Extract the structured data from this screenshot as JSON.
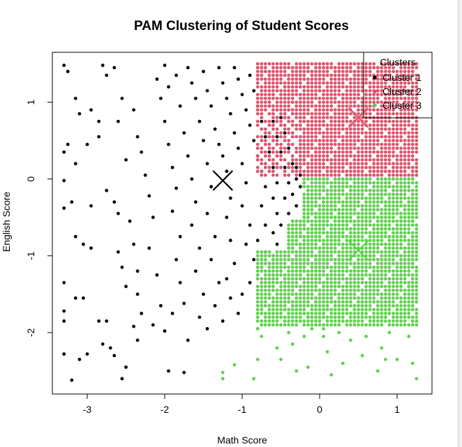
{
  "chart_data": {
    "type": "scatter",
    "title": "PAM Clustering of Student Scores",
    "xlabel": "Math Score",
    "ylabel": "English Score",
    "xlim": [
      -3.45,
      1.45
    ],
    "ylim": [
      -2.8,
      1.65
    ],
    "xticks": [
      -3,
      -2,
      -1,
      0,
      1
    ],
    "yticks": [
      -2,
      -1,
      0,
      1
    ],
    "grid": false,
    "legend": {
      "title": "Clusters",
      "placement": "top-right",
      "entries": [
        "Cluster 1",
        "Cluster 2",
        "Cluster 3"
      ]
    },
    "medoids": [
      {
        "cluster": "Cluster 1",
        "x": -1.25,
        "y": -0.02,
        "color": "#000000"
      },
      {
        "cluster": "Cluster 2",
        "x": 0.5,
        "y": 0.8,
        "color": "#DF536B"
      },
      {
        "cluster": "Cluster 3",
        "x": 0.5,
        "y": -0.93,
        "color": "#61D04F"
      }
    ],
    "series": [
      {
        "name": "Cluster 1",
        "color": "#000000",
        "points": [
          [
            -3.3,
            1.48
          ],
          [
            -3.25,
            1.4
          ],
          [
            -3.15,
            1.05
          ],
          [
            -3.1,
            0.85
          ],
          [
            -3.25,
            0.45
          ],
          [
            -3.3,
            0.35
          ],
          [
            -3.15,
            0.2
          ],
          [
            -3.3,
            -0.02
          ],
          [
            -3.2,
            -0.3
          ],
          [
            -3.3,
            -0.38
          ],
          [
            -3.15,
            -0.75
          ],
          [
            -3.05,
            -0.85
          ],
          [
            -3.3,
            -1.35
          ],
          [
            -3.15,
            -1.55
          ],
          [
            -3.3,
            -1.72
          ],
          [
            -3.3,
            -1.85
          ],
          [
            -3.3,
            -2.28
          ],
          [
            -3.2,
            -2.62
          ],
          [
            -3.1,
            -2.35
          ],
          [
            -3.0,
            0.45
          ],
          [
            -2.95,
            -0.35
          ],
          [
            -2.85,
            0.55
          ],
          [
            -2.95,
            -0.9
          ],
          [
            -3.05,
            -1.55
          ],
          [
            -2.85,
            -1.85
          ],
          [
            -2.75,
            -1.85
          ],
          [
            -2.8,
            -2.15
          ],
          [
            -3.0,
            -2.28
          ],
          [
            -2.8,
            1.48
          ],
          [
            -2.75,
            1.35
          ],
          [
            -2.95,
            0.9
          ],
          [
            -2.85,
            0.75
          ],
          [
            -2.75,
            -0.15
          ],
          [
            -2.65,
            -0.3
          ],
          [
            -2.6,
            -0.45
          ],
          [
            -2.6,
            -0.95
          ],
          [
            -2.55,
            -1.15
          ],
          [
            -2.5,
            -1.4
          ],
          [
            -2.7,
            -2.2
          ],
          [
            -2.65,
            -2.3
          ],
          [
            -2.5,
            -2.45
          ],
          [
            -2.55,
            -2.6
          ],
          [
            -2.65,
            1.45
          ],
          [
            -2.6,
            0.75
          ],
          [
            -2.55,
            1.05
          ],
          [
            -2.5,
            0.25
          ],
          [
            -2.45,
            -0.55
          ],
          [
            -2.4,
            -0.85
          ],
          [
            -2.35,
            -1.2
          ],
          [
            -2.35,
            -1.5
          ],
          [
            -2.3,
            -1.75
          ],
          [
            -2.4,
            -1.92
          ],
          [
            -2.35,
            -2.1
          ],
          [
            -2.4,
            0.9
          ],
          [
            -2.35,
            0.55
          ],
          [
            -2.3,
            0.35
          ],
          [
            -2.25,
            0.05
          ],
          [
            -2.2,
            -0.22
          ],
          [
            -2.15,
            -0.5
          ],
          [
            -2.2,
            -0.9
          ],
          [
            -2.1,
            -1.25
          ],
          [
            -2.05,
            -1.65
          ],
          [
            -2.0,
            -1.98
          ],
          [
            -2.15,
            -1.9
          ],
          [
            -2.1,
            1.3
          ],
          [
            -2.05,
            1.05
          ],
          [
            -2.0,
            0.75
          ],
          [
            -1.95,
            0.45
          ],
          [
            -1.9,
            0.15
          ],
          [
            -1.85,
            -0.12
          ],
          [
            -1.9,
            -0.42
          ],
          [
            -1.8,
            -0.75
          ],
          [
            -1.85,
            -1.05
          ],
          [
            -1.8,
            -1.35
          ],
          [
            -1.75,
            -1.62
          ],
          [
            -1.9,
            -1.75
          ],
          [
            -1.7,
            -2.1
          ],
          [
            -1.95,
            -2.5
          ],
          [
            -1.75,
            -2.52
          ],
          [
            -2.0,
            1.48
          ],
          [
            -1.95,
            1.2
          ],
          [
            -1.85,
            1.35
          ],
          [
            -1.8,
            0.95
          ],
          [
            -1.75,
            0.6
          ],
          [
            -1.7,
            0.3
          ],
          [
            -1.65,
            0.0
          ],
          [
            -1.6,
            -0.3
          ],
          [
            -1.65,
            -0.6
          ],
          [
            -1.55,
            -0.9
          ],
          [
            -1.6,
            -1.2
          ],
          [
            -1.5,
            -1.5
          ],
          [
            -1.55,
            -1.8
          ],
          [
            -1.45,
            -1.95
          ],
          [
            -1.7,
            1.45
          ],
          [
            -1.65,
            1.25
          ],
          [
            -1.6,
            1.05
          ],
          [
            -1.55,
            0.75
          ],
          [
            -1.5,
            0.5
          ],
          [
            -1.45,
            0.2
          ],
          [
            -1.4,
            -0.1
          ],
          [
            -1.45,
            -0.45
          ],
          [
            -1.35,
            -0.75
          ],
          [
            -1.4,
            -1.05
          ],
          [
            -1.3,
            -1.35
          ],
          [
            -1.35,
            -1.65
          ],
          [
            -1.25,
            -1.85
          ],
          [
            -1.5,
            1.4
          ],
          [
            -1.45,
            1.15
          ],
          [
            -1.4,
            0.95
          ],
          [
            -1.35,
            0.65
          ],
          [
            -1.3,
            0.45
          ],
          [
            -1.25,
            0.3
          ],
          [
            -1.2,
            0.1
          ],
          [
            -1.15,
            -0.25
          ],
          [
            -1.2,
            -0.5
          ],
          [
            -1.15,
            -0.8
          ],
          [
            -1.1,
            -1.1
          ],
          [
            -1.2,
            -1.3
          ],
          [
            -1.15,
            -1.55
          ],
          [
            -1.05,
            -1.75
          ],
          [
            -1.3,
            1.45
          ],
          [
            -1.25,
            1.25
          ],
          [
            -1.2,
            1.05
          ],
          [
            -1.15,
            0.85
          ],
          [
            -1.1,
            0.6
          ],
          [
            -1.05,
            0.4
          ],
          [
            -1.0,
            0.2
          ],
          [
            -0.95,
            -0.05
          ],
          [
            -1.0,
            -0.35
          ],
          [
            -0.9,
            -0.6
          ],
          [
            -0.95,
            -0.85
          ],
          [
            -0.85,
            -1.05
          ],
          [
            -0.9,
            -1.35
          ],
          [
            -1.0,
            -1.5
          ],
          [
            -1.1,
            1.45
          ],
          [
            -1.05,
            1.3
          ],
          [
            -1.0,
            1.1
          ],
          [
            -0.95,
            0.9
          ],
          [
            -0.9,
            0.7
          ],
          [
            -0.85,
            0.5
          ],
          [
            -0.8,
            0.3
          ],
          [
            -0.75,
            0.1
          ],
          [
            -0.7,
            -0.1
          ],
          [
            -0.75,
            -0.35
          ],
          [
            -0.7,
            -0.6
          ],
          [
            -0.8,
            -0.8
          ],
          [
            -0.7,
            -0.95
          ],
          [
            -0.9,
            1.35
          ],
          [
            -0.85,
            1.15
          ],
          [
            -0.8,
            0.95
          ],
          [
            -0.75,
            0.75
          ],
          [
            -0.7,
            0.55
          ],
          [
            -0.65,
            0.35
          ],
          [
            -0.6,
            0.15
          ],
          [
            -0.55,
            -0.05
          ],
          [
            -0.6,
            -0.25
          ],
          [
            -0.55,
            -0.45
          ],
          [
            -0.6,
            -0.7
          ],
          [
            -0.55,
            -0.85
          ],
          [
            -0.65,
            0.95
          ],
          [
            -0.6,
            0.75
          ],
          [
            -0.55,
            0.55
          ],
          [
            -0.5,
            0.35
          ],
          [
            -0.45,
            0.15
          ],
          [
            -0.4,
            -0.05
          ],
          [
            -0.45,
            -0.25
          ],
          [
            -0.4,
            -0.45
          ],
          [
            -0.5,
            -0.6
          ],
          [
            -0.5,
            0.8
          ],
          [
            -0.45,
            0.6
          ],
          [
            -0.4,
            0.4
          ],
          [
            -0.35,
            0.2
          ],
          [
            -0.3,
            0.0
          ],
          [
            -0.35,
            -0.2
          ],
          [
            -0.3,
            -0.35
          ],
          [
            -0.3,
            0.15
          ],
          [
            -0.25,
            -0.1
          ],
          [
            -0.25,
            0.05
          ]
        ]
      },
      {
        "name": "Cluster 2",
        "color": "#DF536B",
        "grid": {
          "x_start": -0.8,
          "x_end": 1.25,
          "x_step": 0.05,
          "y_start": 0.05,
          "y_end": 1.5,
          "y_step": 0.05
        }
      },
      {
        "name": "Cluster 3",
        "color": "#61D04F",
        "grid": {
          "x_start": -0.8,
          "x_end": 1.25,
          "x_step": 0.05,
          "y_start": -1.9,
          "y_end": 0.0,
          "y_step": 0.05
        },
        "points": [
          [
            -0.8,
            -1.95
          ],
          [
            -0.8,
            -2.35
          ],
          [
            -0.75,
            -2.05
          ],
          [
            -0.55,
            -2.2
          ],
          [
            -0.5,
            -2.35
          ],
          [
            -0.4,
            -2.0
          ],
          [
            -0.35,
            -2.15
          ],
          [
            -0.3,
            -2.5
          ],
          [
            -0.2,
            -2.05
          ],
          [
            -0.15,
            -2.45
          ],
          [
            -0.1,
            -1.95
          ],
          [
            -1.25,
            -2.6
          ],
          [
            -1.25,
            -2.52
          ],
          [
            -1.1,
            -2.42
          ],
          [
            -0.85,
            -2.6
          ],
          [
            0.05,
            -2.05
          ],
          [
            0.1,
            -2.25
          ],
          [
            0.15,
            -2.55
          ],
          [
            0.25,
            -2.0
          ],
          [
            0.3,
            -2.4
          ],
          [
            0.4,
            -2.1
          ],
          [
            0.55,
            -2.3
          ],
          [
            0.6,
            -2.05
          ],
          [
            0.75,
            -2.5
          ],
          [
            0.8,
            -2.2
          ],
          [
            0.9,
            -2.0
          ],
          [
            1.0,
            -2.35
          ],
          [
            1.15,
            -2.05
          ],
          [
            1.2,
            -2.4
          ],
          [
            1.25,
            -2.6
          ],
          [
            0.85,
            -2.35
          ],
          [
            0.05,
            -1.95
          ]
        ]
      }
    ]
  }
}
